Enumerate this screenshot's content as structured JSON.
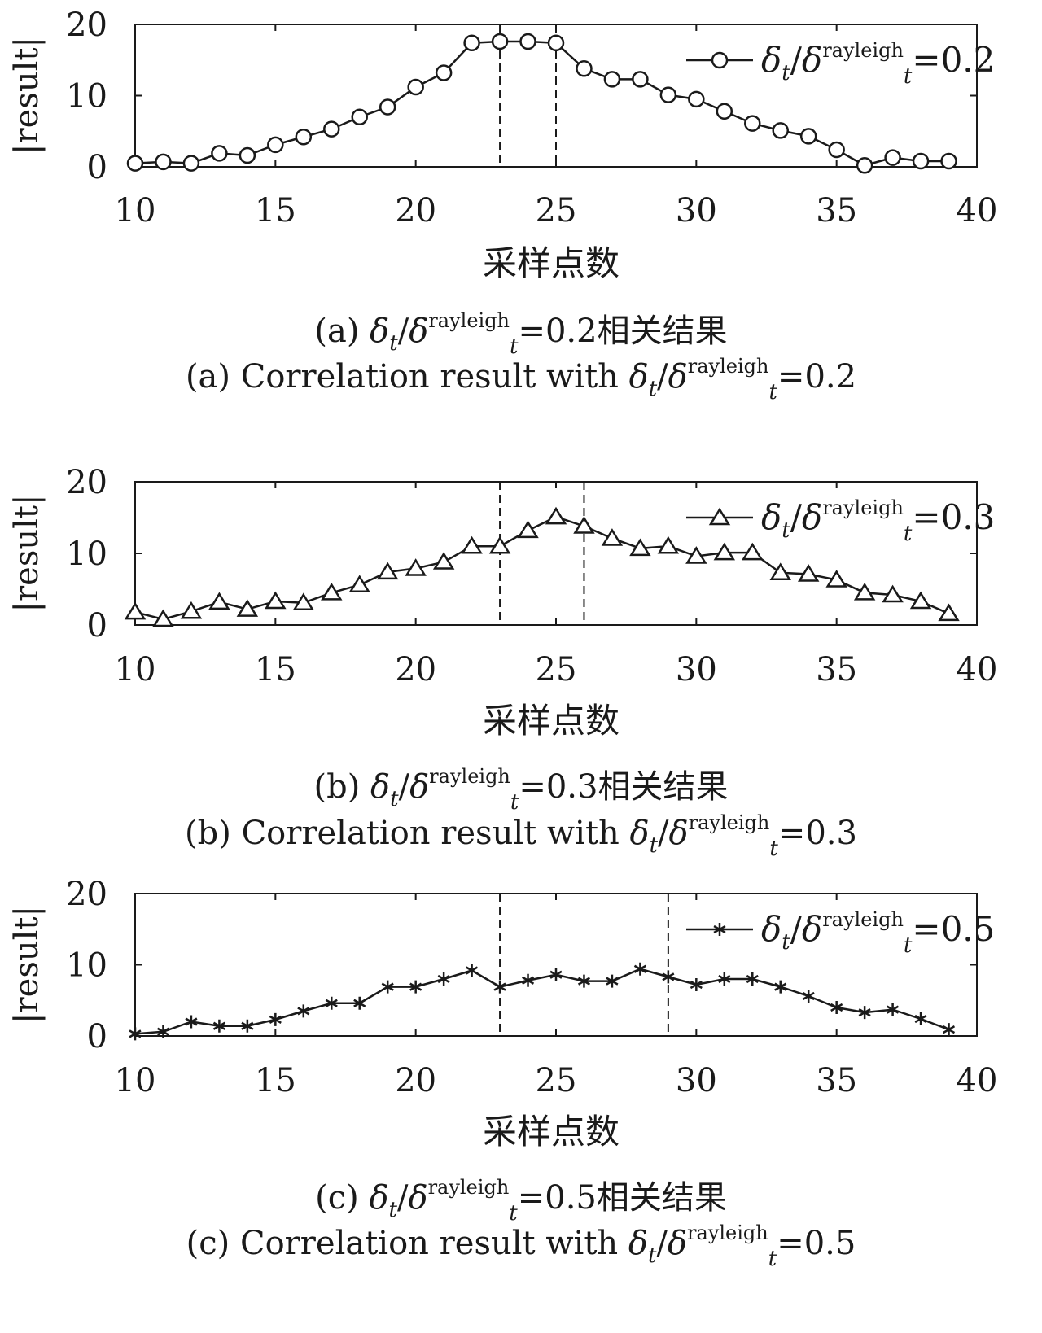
{
  "chart_data": [
    {
      "type": "line",
      "xlabel": "采样点数",
      "ylabel": "|result|",
      "xlim": [
        10,
        40
      ],
      "ylim": [
        0,
        20
      ],
      "xticks": [
        "10",
        "15",
        "20",
        "25",
        "30",
        "35",
        "40"
      ],
      "yticks": [
        "0",
        "10",
        "20"
      ],
      "legend_position": "top-right",
      "marker": "circle",
      "series": [
        {
          "name": "δt/δt^rayleigh=0.2",
          "name_parts": {
            "a": "δ",
            "a_sub": "t",
            "b": "δ",
            "b_sup": "rayleigh",
            "b_sub": "t",
            "eq": "=0.2"
          },
          "x": [
            10,
            11,
            12,
            13,
            14,
            15,
            16,
            17,
            18,
            19,
            20,
            21,
            22,
            23,
            24,
            25,
            26,
            27,
            28,
            29,
            30,
            31,
            32,
            33,
            34,
            35,
            36,
            37,
            38,
            39
          ],
          "values": [
            0.5,
            0.7,
            0.5,
            1.9,
            1.6,
            3.1,
            4.2,
            5.3,
            7.0,
            8.4,
            11.2,
            13.2,
            17.4,
            17.6,
            17.6,
            17.4,
            13.8,
            12.3,
            12.3,
            10.1,
            9.5,
            7.8,
            6.1,
            5.1,
            4.3,
            2.4,
            0.2,
            1.3,
            0.8,
            0.8
          ]
        }
      ],
      "vlines": [
        23,
        25
      ],
      "caption_cn": {
        "prefix": "(a) ",
        "a": "δ",
        "a_sub": "t",
        "b": "δ",
        "b_sup": "rayleigh",
        "b_sub": "t",
        "eq": "=0.2相关结果"
      },
      "caption_en": {
        "prefix": "(a) Correlation result with  ",
        "a": "δ",
        "a_sub": "t",
        "b": "δ",
        "b_sup": "rayleigh",
        "b_sub": "t",
        "eq": "=0.2"
      }
    },
    {
      "type": "line",
      "xlabel": "采样点数",
      "ylabel": "|result|",
      "xlim": [
        10,
        40
      ],
      "ylim": [
        0,
        20
      ],
      "xticks": [
        "10",
        "15",
        "20",
        "25",
        "30",
        "35",
        "40"
      ],
      "yticks": [
        "0",
        "10",
        "20"
      ],
      "legend_position": "top-right",
      "marker": "triangle",
      "series": [
        {
          "name": "δt/δt^rayleigh=0.3",
          "name_parts": {
            "a": "δ",
            "a_sub": "t",
            "b": "δ",
            "b_sup": "rayleigh",
            "b_sub": "t",
            "eq": "=0.3"
          },
          "x": [
            10,
            11,
            12,
            13,
            14,
            15,
            16,
            17,
            18,
            19,
            20,
            21,
            22,
            23,
            24,
            25,
            26,
            27,
            28,
            29,
            30,
            31,
            32,
            33,
            34,
            35,
            36,
            37,
            38,
            39
          ],
          "values": [
            1.8,
            0.8,
            1.9,
            3.2,
            2.2,
            3.3,
            3.1,
            4.5,
            5.6,
            7.4,
            7.9,
            8.8,
            11.0,
            11.0,
            13.2,
            15.1,
            13.8,
            12.1,
            10.7,
            11.0,
            9.6,
            10.1,
            10.1,
            7.3,
            7.1,
            6.3,
            4.5,
            4.2,
            3.3,
            1.6
          ]
        }
      ],
      "vlines": [
        23,
        26
      ],
      "caption_cn": {
        "prefix": "(b) ",
        "a": "δ",
        "a_sub": "t",
        "b": "δ",
        "b_sup": "rayleigh",
        "b_sub": "t",
        "eq": "=0.3相关结果"
      },
      "caption_en": {
        "prefix": "(b) Correlation result with  ",
        "a": "δ",
        "a_sub": "t",
        "b": "δ",
        "b_sup": "rayleigh",
        "b_sub": "t",
        "eq": "=0.3"
      }
    },
    {
      "type": "line",
      "xlabel": "采样点数",
      "ylabel": "|result|",
      "xlim": [
        10,
        40
      ],
      "ylim": [
        0,
        20
      ],
      "xticks": [
        "10",
        "15",
        "20",
        "25",
        "30",
        "35",
        "40"
      ],
      "yticks": [
        "0",
        "10",
        "20"
      ],
      "legend_position": "top-right",
      "marker": "star",
      "series": [
        {
          "name": "δt/δt^rayleigh=0.5",
          "name_parts": {
            "a": "δ",
            "a_sub": "t",
            "b": "δ",
            "b_sup": "rayleigh",
            "b_sub": "t",
            "eq": "=0.5"
          },
          "x": [
            10,
            11,
            12,
            13,
            14,
            15,
            16,
            17,
            18,
            19,
            20,
            21,
            22,
            23,
            24,
            25,
            26,
            27,
            28,
            29,
            30,
            31,
            32,
            33,
            34,
            35,
            36,
            37,
            38,
            39
          ],
          "values": [
            0.3,
            0.6,
            2.0,
            1.4,
            1.4,
            2.3,
            3.5,
            4.6,
            4.6,
            6.9,
            6.9,
            8.0,
            9.2,
            6.9,
            7.8,
            8.6,
            7.7,
            7.7,
            9.4,
            8.3,
            7.2,
            8.0,
            8.0,
            6.9,
            5.6,
            4.0,
            3.3,
            3.7,
            2.4,
            0.9
          ]
        }
      ],
      "vlines": [
        23,
        29
      ],
      "caption_cn": {
        "prefix": "(c) ",
        "a": "δ",
        "a_sub": "t",
        "b": "δ",
        "b_sup": "rayleigh",
        "b_sub": "t",
        "eq": "=0.5相关结果"
      },
      "caption_en": {
        "prefix": "(c) Correlation result with  ",
        "a": "δ",
        "a_sub": "t",
        "b": "δ",
        "b_sup": "rayleigh",
        "b_sub": "t",
        "eq": "=0.5"
      }
    }
  ]
}
